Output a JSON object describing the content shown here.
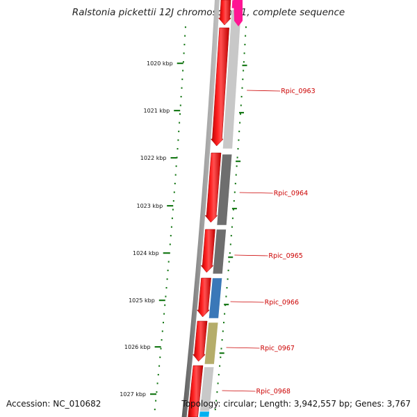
{
  "title": "Ralstonia pickettii 12J chromosome 1, complete sequence",
  "footer": {
    "accession": "Accession: NC_010682",
    "topology": "Topology: circular; Length: 3,942,557 bp; Genes: 3,767"
  },
  "kbp_labels": [
    "1020 kbp",
    "1021 kbp",
    "1022 kbp",
    "1023 kbp",
    "1024 kbp",
    "1025 kbp",
    "1026 kbp",
    "1027 kbp"
  ],
  "genes": [
    {
      "label": "Rpic_0963",
      "color": "#c8c8c8"
    },
    {
      "label": "Rpic_0964",
      "color": "#6e6e6e"
    },
    {
      "label": "Rpic_0965",
      "color": "#6e6e6e"
    },
    {
      "label": "Rpic_0966",
      "color": "#3a78b8"
    },
    {
      "label": "Rpic_0967",
      "color": "#b5ad6a"
    },
    {
      "label": "Rpic_0968",
      "color": "#c8c8c8"
    }
  ],
  "colors": {
    "forward_cds": "#ff0000",
    "backbone": "#7a7a7a",
    "tick": "#1a7a1a",
    "label": "#cc0000",
    "top_gene": "#ff1493",
    "bottom_gene": "#00b0f0"
  }
}
